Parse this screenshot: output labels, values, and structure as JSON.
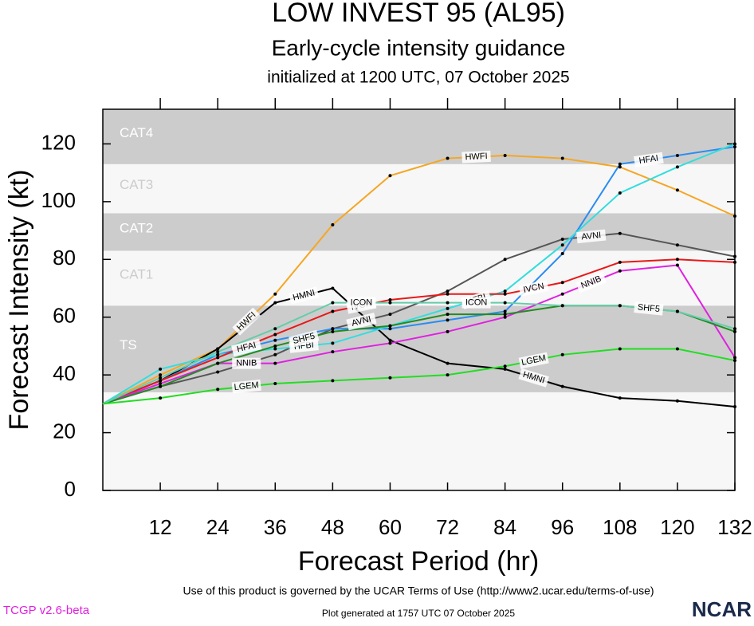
{
  "chart_data": {
    "type": "line",
    "title": "LOW INVEST 95 (AL95)",
    "subtitle": "Early-cycle intensity guidance",
    "initialized": "initialized at 1200 UTC, 07 October 2025",
    "x_label": "Forecast Period (hr)",
    "y_label": "Forecast Intensity (kt)",
    "terms": "Use of this product is governed by the UCAR Terms of Use (http://www2.ucar.edu/terms-of-use)",
    "version": "TCGP v2.6-beta",
    "generated": "Plot generated at 1757 UTC   07 October 2025",
    "logo": "NCAR",
    "xlim": [
      0,
      132
    ],
    "ylim": [
      0,
      132
    ],
    "xticks": [
      12,
      24,
      36,
      48,
      60,
      72,
      84,
      96,
      108,
      120,
      132
    ],
    "yticks": [
      0,
      20,
      40,
      60,
      80,
      100,
      120
    ],
    "bands": [
      {
        "label": "TS",
        "from": 34,
        "to": 64,
        "color": "#cccccc"
      },
      {
        "label": "CAT1",
        "from": 64,
        "to": 83,
        "color": "#f7f7f7"
      },
      {
        "label": "CAT2",
        "from": 83,
        "to": 96,
        "color": "#cccccc"
      },
      {
        "label": "CAT3",
        "from": 96,
        "to": 113,
        "color": "#f7f7f7"
      },
      {
        "label": "CAT4",
        "from": 113,
        "to": 132,
        "color": "#cccccc"
      }
    ],
    "x": [
      0,
      12,
      24,
      36,
      48,
      60,
      72,
      84,
      96,
      108,
      120,
      132
    ],
    "series": [
      {
        "name": "HWFI",
        "color": "#f5a623",
        "values": [
          30,
          40,
          49,
          68,
          92,
          109,
          115,
          116,
          115,
          112,
          104,
          95
        ]
      },
      {
        "name": "HMNI",
        "color": "#000000",
        "values": [
          30,
          38,
          49,
          65,
          70,
          52,
          44,
          42,
          36,
          32,
          31,
          29
        ]
      },
      {
        "name": "AVNI",
        "color": "#555555",
        "values": [
          30,
          36,
          41,
          47,
          56,
          61,
          69,
          80,
          87,
          89,
          85,
          81
        ]
      },
      {
        "name": "HFAI",
        "color": "#2a8cf0",
        "values": [
          30,
          38,
          47,
          52,
          56,
          56,
          59,
          62,
          82,
          113,
          116,
          119
        ]
      },
      {
        "name": "HFBI",
        "color": "#33dddd",
        "values": [
          30,
          42,
          47,
          49,
          51,
          57,
          63,
          69,
          85,
          103,
          112,
          120
        ]
      },
      {
        "name": "IVCN",
        "color": "#e81818",
        "values": [
          30,
          38,
          46,
          54,
          62,
          66,
          68,
          68,
          72,
          79,
          80,
          79
        ]
      },
      {
        "name": "NNIB",
        "color": "#e020e0",
        "values": [
          30,
          37,
          44,
          44,
          48,
          51,
          55,
          60,
          68,
          76,
          78,
          46
        ]
      },
      {
        "name": "SHF5",
        "color": "#228b22",
        "values": [
          30,
          36,
          44,
          50,
          55,
          57,
          61,
          61,
          64,
          64,
          62,
          55
        ]
      },
      {
        "name": "ICON",
        "color": "#66ccaa",
        "values": [
          30,
          39,
          48,
          56,
          65,
          65,
          65,
          65,
          64,
          64,
          62,
          56
        ]
      },
      {
        "name": "LGEM",
        "color": "#22dd22",
        "values": [
          30,
          32,
          35,
          37,
          38,
          39,
          40,
          43,
          47,
          49,
          49,
          45
        ]
      }
    ]
  }
}
